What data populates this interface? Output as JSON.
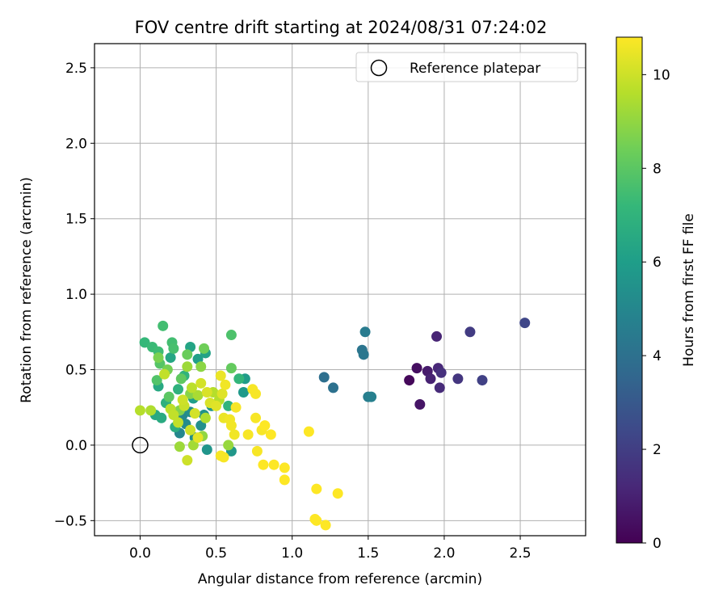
{
  "chart_data": {
    "type": "scatter",
    "title": "FOV centre drift starting at 2024/08/31 07:24:02",
    "xlabel": "Angular distance from reference (arcmin)",
    "ylabel": "Rotation from reference (arcmin)",
    "xlim": [
      -0.3,
      2.93
    ],
    "ylim": [
      -0.6,
      2.66
    ],
    "x_ticks": [
      "0.0",
      "0.5",
      "1.0",
      "1.5",
      "2.0",
      "2.5"
    ],
    "x_tick_values": [
      0,
      0.5,
      1.0,
      1.5,
      2.0,
      2.5
    ],
    "y_ticks": [
      "−0.5",
      "0.0",
      "0.5",
      "1.0",
      "1.5",
      "2.0",
      "2.5"
    ],
    "y_tick_values": [
      -0.5,
      0,
      0.5,
      1.0,
      1.5,
      2.0,
      2.5
    ],
    "grid": true,
    "legend_position": "top-right",
    "legend": {
      "label": "Reference platepar",
      "marker": "open-circle",
      "x": 0,
      "y": 0
    },
    "colorbar": {
      "label": "Hours from first FF file",
      "colormap": "viridis",
      "range": [
        0,
        10.8
      ],
      "ticks": [
        "0",
        "2",
        "4",
        "6",
        "8",
        "10"
      ],
      "tick_values": [
        0,
        2,
        4,
        6,
        8,
        10
      ],
      "colors": [
        "#440154",
        "#482878",
        "#3e4989",
        "#31688e",
        "#26828e",
        "#1f9e89",
        "#35b779",
        "#6ece58",
        "#b5de2b",
        "#fde725"
      ]
    },
    "points": [
      {
        "x": 1.77,
        "y": 0.43,
        "c": 0.2
      },
      {
        "x": 1.82,
        "y": 0.51,
        "c": 0.4
      },
      {
        "x": 1.84,
        "y": 0.27,
        "c": 0.6
      },
      {
        "x": 1.89,
        "y": 0.49,
        "c": 0.8
      },
      {
        "x": 1.91,
        "y": 0.44,
        "c": 1.0
      },
      {
        "x": 1.95,
        "y": 0.72,
        "c": 1.1
      },
      {
        "x": 1.96,
        "y": 0.51,
        "c": 1.2
      },
      {
        "x": 1.97,
        "y": 0.38,
        "c": 1.3
      },
      {
        "x": 1.98,
        "y": 0.48,
        "c": 1.5
      },
      {
        "x": 2.09,
        "y": 0.44,
        "c": 1.7
      },
      {
        "x": 2.17,
        "y": 0.75,
        "c": 1.9
      },
      {
        "x": 2.25,
        "y": 0.43,
        "c": 2.1
      },
      {
        "x": 2.53,
        "y": 0.81,
        "c": 2.3
      },
      {
        "x": 1.21,
        "y": 0.45,
        "c": 3.9
      },
      {
        "x": 1.27,
        "y": 0.38,
        "c": 4.0
      },
      {
        "x": 1.46,
        "y": 0.63,
        "c": 4.2
      },
      {
        "x": 1.47,
        "y": 0.6,
        "c": 4.3
      },
      {
        "x": 1.48,
        "y": 0.75,
        "c": 4.5
      },
      {
        "x": 1.5,
        "y": 0.32,
        "c": 4.6
      },
      {
        "x": 1.52,
        "y": 0.32,
        "c": 4.7
      },
      {
        "x": 0.26,
        "y": 0.08,
        "c": 5.0
      },
      {
        "x": 0.28,
        "y": 0.2,
        "c": 5.1
      },
      {
        "x": 0.3,
        "y": 0.14,
        "c": 5.2
      },
      {
        "x": 0.33,
        "y": 0.22,
        "c": 5.3
      },
      {
        "x": 0.36,
        "y": 0.05,
        "c": 5.3
      },
      {
        "x": 0.4,
        "y": 0.13,
        "c": 5.4
      },
      {
        "x": 0.42,
        "y": 0.2,
        "c": 5.5
      },
      {
        "x": 0.44,
        "y": -0.03,
        "c": 5.6
      },
      {
        "x": 0.47,
        "y": 0.26,
        "c": 5.6
      },
      {
        "x": 0.6,
        "y": -0.04,
        "c": 5.7
      },
      {
        "x": 0.68,
        "y": 0.35,
        "c": 5.8
      },
      {
        "x": 0.69,
        "y": 0.44,
        "c": 5.9
      },
      {
        "x": 0.35,
        "y": 0.31,
        "c": 6.0
      },
      {
        "x": 0.38,
        "y": 0.57,
        "c": 6.1
      },
      {
        "x": 0.43,
        "y": 0.61,
        "c": 6.2
      },
      {
        "x": 0.33,
        "y": 0.65,
        "c": 6.3
      },
      {
        "x": 0.2,
        "y": 0.58,
        "c": 6.4
      },
      {
        "x": 0.12,
        "y": 0.39,
        "c": 6.5
      },
      {
        "x": 0.1,
        "y": 0.2,
        "c": 6.5
      },
      {
        "x": 0.14,
        "y": 0.18,
        "c": 6.6
      },
      {
        "x": 0.23,
        "y": 0.12,
        "c": 6.7
      },
      {
        "x": 0.17,
        "y": 0.28,
        "c": 6.8
      },
      {
        "x": 0.25,
        "y": 0.37,
        "c": 6.9
      },
      {
        "x": 0.29,
        "y": 0.46,
        "c": 7.0
      },
      {
        "x": 0.58,
        "y": 0.26,
        "c": 7.0
      },
      {
        "x": 0.65,
        "y": 0.44,
        "c": 7.1
      },
      {
        "x": 0.03,
        "y": 0.68,
        "c": 7.2
      },
      {
        "x": 0.08,
        "y": 0.65,
        "c": 7.3
      },
      {
        "x": 0.12,
        "y": 0.62,
        "c": 7.4
      },
      {
        "x": 0.15,
        "y": 0.79,
        "c": 7.5
      },
      {
        "x": 0.21,
        "y": 0.68,
        "c": 7.5
      },
      {
        "x": 0.22,
        "y": 0.64,
        "c": 7.6
      },
      {
        "x": 0.6,
        "y": 0.73,
        "c": 7.7
      },
      {
        "x": 0.11,
        "y": 0.43,
        "c": 7.8
      },
      {
        "x": 0.13,
        "y": 0.54,
        "c": 7.9
      },
      {
        "x": 0.19,
        "y": 0.32,
        "c": 8.0
      },
      {
        "x": 0.27,
        "y": 0.44,
        "c": 8.1
      },
      {
        "x": 0.6,
        "y": 0.51,
        "c": 8.2
      },
      {
        "x": 0.31,
        "y": 0.6,
        "c": 8.3
      },
      {
        "x": 0.42,
        "y": 0.64,
        "c": 8.4
      },
      {
        "x": 0.18,
        "y": 0.5,
        "c": 8.5
      },
      {
        "x": 0.12,
        "y": 0.58,
        "c": 8.6
      },
      {
        "x": 0.26,
        "y": 0.23,
        "c": 8.7
      },
      {
        "x": 0.33,
        "y": 0.34,
        "c": 8.8
      },
      {
        "x": 0.4,
        "y": 0.52,
        "c": 8.9
      },
      {
        "x": 0.41,
        "y": 0.06,
        "c": 9.0
      },
      {
        "x": 0.58,
        "y": 0.0,
        "c": 9.1
      },
      {
        "x": 0.26,
        "y": -0.01,
        "c": 9.2
      },
      {
        "x": 0.31,
        "y": 0.52,
        "c": 9.2
      },
      {
        "x": 0.35,
        "y": 0.0,
        "c": 9.3
      },
      {
        "x": 0.38,
        "y": 0.33,
        "c": 9.4
      },
      {
        "x": 0.43,
        "y": 0.18,
        "c": 9.5
      },
      {
        "x": 0.48,
        "y": 0.35,
        "c": 9.6
      },
      {
        "x": 0.52,
        "y": 0.3,
        "c": 9.6
      },
      {
        "x": 0.2,
        "y": 0.24,
        "c": 9.7
      },
      {
        "x": 0.22,
        "y": 0.2,
        "c": 9.8
      },
      {
        "x": 0.25,
        "y": 0.15,
        "c": 9.8
      },
      {
        "x": 0.29,
        "y": 0.26,
        "c": 9.9
      },
      {
        "x": 0.31,
        "y": -0.1,
        "c": 10.0
      },
      {
        "x": 0.33,
        "y": 0.1,
        "c": 10.0
      },
      {
        "x": 0.36,
        "y": 0.21,
        "c": 10.1
      },
      {
        "x": 0.4,
        "y": 0.41,
        "c": 10.1
      },
      {
        "x": 0.44,
        "y": 0.35,
        "c": 10.2
      },
      {
        "x": 0.46,
        "y": 0.28,
        "c": 10.2
      },
      {
        "x": 0.5,
        "y": 0.26,
        "c": 10.3
      },
      {
        "x": 0.54,
        "y": 0.34,
        "c": 10.3
      },
      {
        "x": 0.0,
        "y": 0.23,
        "c": 9.6
      },
      {
        "x": 0.07,
        "y": 0.23,
        "c": 9.5
      },
      {
        "x": 0.16,
        "y": 0.47,
        "c": 9.8
      },
      {
        "x": 0.34,
        "y": 0.38,
        "c": 9.7
      },
      {
        "x": 0.28,
        "y": 0.3,
        "c": 10.0
      },
      {
        "x": 0.38,
        "y": 0.05,
        "c": 10.4
      },
      {
        "x": 0.53,
        "y": 0.46,
        "c": 10.5
      },
      {
        "x": 0.55,
        "y": 0.18,
        "c": 10.5
      },
      {
        "x": 0.56,
        "y": 0.4,
        "c": 10.6
      },
      {
        "x": 0.59,
        "y": 0.17,
        "c": 10.6
      },
      {
        "x": 0.6,
        "y": 0.13,
        "c": 10.6
      },
      {
        "x": 0.62,
        "y": 0.07,
        "c": 10.6
      },
      {
        "x": 0.63,
        "y": 0.25,
        "c": 10.7
      },
      {
        "x": 0.53,
        "y": -0.07,
        "c": 10.7
      },
      {
        "x": 0.55,
        "y": -0.08,
        "c": 10.7
      },
      {
        "x": 0.71,
        "y": 0.07,
        "c": 10.7
      },
      {
        "x": 0.74,
        "y": 0.37,
        "c": 10.7
      },
      {
        "x": 0.76,
        "y": 0.34,
        "c": 10.7
      },
      {
        "x": 0.76,
        "y": 0.18,
        "c": 10.7
      },
      {
        "x": 0.77,
        "y": -0.04,
        "c": 10.7
      },
      {
        "x": 0.8,
        "y": 0.1,
        "c": 10.7
      },
      {
        "x": 0.82,
        "y": 0.13,
        "c": 10.8
      },
      {
        "x": 0.81,
        "y": -0.13,
        "c": 10.8
      },
      {
        "x": 0.86,
        "y": 0.07,
        "c": 10.8
      },
      {
        "x": 0.88,
        "y": -0.13,
        "c": 10.8
      },
      {
        "x": 0.95,
        "y": -0.15,
        "c": 10.8
      },
      {
        "x": 0.95,
        "y": -0.23,
        "c": 10.8
      },
      {
        "x": 1.11,
        "y": 0.09,
        "c": 10.8
      },
      {
        "x": 1.16,
        "y": -0.29,
        "c": 10.8
      },
      {
        "x": 1.15,
        "y": -0.49,
        "c": 10.8
      },
      {
        "x": 1.16,
        "y": -0.5,
        "c": 10.8
      },
      {
        "x": 1.22,
        "y": -0.53,
        "c": 10.8
      },
      {
        "x": 1.3,
        "y": -0.32,
        "c": 10.8
      }
    ]
  }
}
